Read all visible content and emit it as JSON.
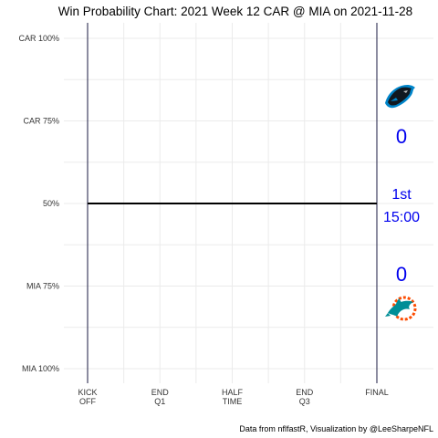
{
  "chart_data": {
    "type": "line",
    "title": "Win Probability Chart: 2021 Week 12 CAR @ MIA on 2021-11-28",
    "caption": "Data from nflfastR, Visualization by @LeeSharpeNFL",
    "y_ticks": [
      {
        "value": 1.0,
        "label": "CAR 100%"
      },
      {
        "value": 0.75,
        "label": "CAR 75%"
      },
      {
        "value": 0.5,
        "label": "50%"
      },
      {
        "value": 0.25,
        "label": "MIA 75%"
      },
      {
        "value": 0.0,
        "label": "MIA 100%"
      }
    ],
    "x_ticks": [
      {
        "value": 3600,
        "line1": "KICK",
        "line2": "OFF"
      },
      {
        "value": 2700,
        "line1": "END",
        "line2": "Q1"
      },
      {
        "value": 1800,
        "line1": "HALF",
        "line2": "TIME"
      },
      {
        "value": 900,
        "line1": "END",
        "line2": "Q3"
      },
      {
        "value": 0,
        "line1": "FINAL",
        "line2": ""
      }
    ],
    "xlim": [
      3600,
      0
    ],
    "ylim": [
      0,
      1
    ],
    "grid": true,
    "series": [
      {
        "x": [
          3600,
          0
        ],
        "y": [
          0.5,
          0.5
        ],
        "color": "#000000"
      }
    ],
    "home_score": "0",
    "away_score": "0",
    "quarter": "1st",
    "clock": "15:00",
    "away_team_icon": "panthers-logo-icon",
    "home_team_icon": "dolphins-logo-icon",
    "text_color": "#0000ee"
  }
}
